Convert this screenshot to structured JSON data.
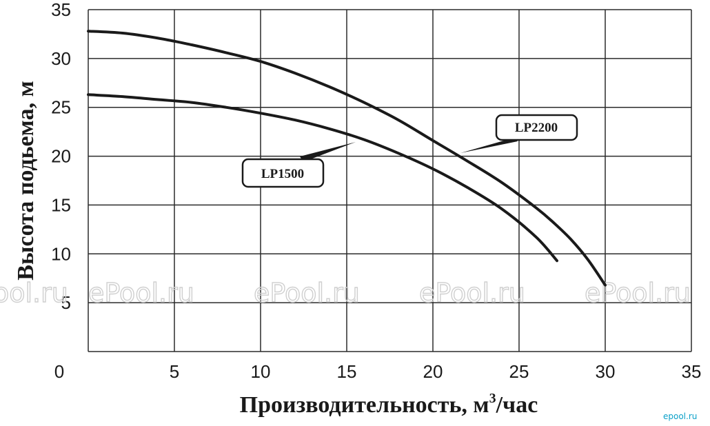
{
  "chart_data": {
    "type": "line",
    "title": "",
    "xlabel": "Производительность, м",
    "xlabel_superscript": "3",
    "xlabel_suffix": "/час",
    "ylabel": "Высота подьема, м",
    "xlim": [
      0,
      35
    ],
    "ylim": [
      0,
      35
    ],
    "x_ticks": [
      "5",
      "10",
      "15",
      "20",
      "25",
      "30",
      "35"
    ],
    "y_ticks": [
      "5",
      "10",
      "15",
      "20",
      "25",
      "30",
      "35"
    ],
    "origin_label": "0",
    "grid": true,
    "series": [
      {
        "name": "LP2200",
        "x": [
          0,
          2,
          4,
          6,
          8,
          10,
          12,
          14,
          16,
          18,
          20,
          22,
          24,
          26,
          27,
          28,
          29,
          30
        ],
        "y": [
          32.8,
          32.6,
          32.1,
          31.4,
          30.6,
          29.7,
          28.5,
          27.1,
          25.5,
          23.7,
          21.6,
          19.5,
          17.3,
          14.7,
          13.2,
          11.5,
          9.4,
          6.8
        ]
      },
      {
        "name": "LP1500",
        "x": [
          0,
          2,
          4,
          6,
          8,
          10,
          12,
          14,
          16,
          18,
          20,
          22,
          24,
          26,
          27.2
        ],
        "y": [
          26.3,
          26.1,
          25.8,
          25.5,
          25.0,
          24.4,
          23.7,
          22.8,
          21.7,
          20.3,
          18.7,
          16.8,
          14.6,
          11.7,
          9.3
        ]
      }
    ],
    "watermark": "ePool.ru",
    "brand": "epool.ru",
    "colors": {
      "line": "#1a1a1a",
      "grid": "#2a2a2a"
    }
  }
}
